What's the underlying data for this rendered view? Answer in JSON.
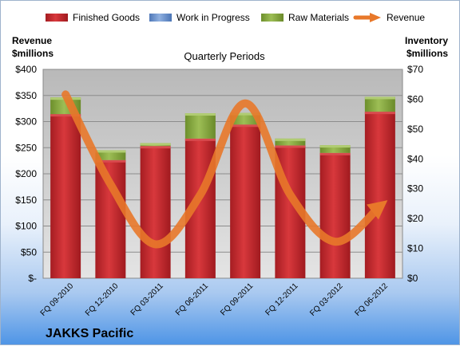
{
  "chart_data": {
    "type": "bar",
    "subtitle": "Quarterly Periods",
    "company": "JAKKS Pacific",
    "left_axis_label": [
      "Revenue",
      "$millions"
    ],
    "right_axis_label": [
      "Inventory",
      "$millions"
    ],
    "categories": [
      "FQ 09-2010",
      "FQ 12-2010",
      "FQ 03-2011",
      "FQ 06-2011",
      "FQ 09-2011",
      "FQ 12-2011",
      "FQ 03-2012",
      "FQ 06-2012"
    ],
    "left_axis": {
      "min": 0,
      "max": 400,
      "ticks": [
        0,
        50,
        100,
        150,
        200,
        250,
        300,
        350,
        400
      ],
      "tick_labels": [
        "$-",
        "$50",
        "$100",
        "$150",
        "$200",
        "$250",
        "$300",
        "$350",
        "$400"
      ]
    },
    "right_axis": {
      "min": 0,
      "max": 70,
      "ticks": [
        0,
        10,
        20,
        30,
        40,
        50,
        60,
        70
      ],
      "tick_labels": [
        "$0",
        "$10",
        "$20",
        "$30",
        "$40",
        "$50",
        "$60",
        "$70"
      ]
    },
    "grid": true,
    "legend_position": "top",
    "stacked_series": [
      {
        "name": "Finished Goods",
        "axis": "right",
        "color": "#c0262b",
        "values": [
          55.0,
          39.6,
          44.3,
          46.8,
          51.5,
          44.5,
          42.0,
          55.8
        ]
      },
      {
        "name": "Work in Progress",
        "axis": "right",
        "color": "#6e95cf",
        "values": [
          0,
          0,
          0,
          0,
          0,
          0,
          0,
          0
        ]
      },
      {
        "name": "Raw Materials",
        "axis": "right",
        "color": "#84a63c",
        "values": [
          5.6,
          3.3,
          1.0,
          8.5,
          3.9,
          2.3,
          2.6,
          5.0
        ]
      }
    ],
    "line_series": [
      {
        "name": "Revenue",
        "axis": "left",
        "color": "#e8782a",
        "values": [
          352,
          180,
          65,
          160,
          335,
          160,
          70,
          138
        ]
      }
    ]
  }
}
